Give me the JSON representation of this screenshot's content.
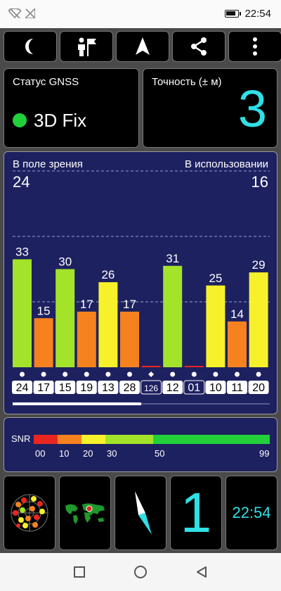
{
  "status_bar": {
    "time": "22:54"
  },
  "toolbar": {
    "icons": [
      "moon-icon",
      "person-flag-icon",
      "navigation-arrow-icon",
      "share-icon",
      "more-vertical-icon"
    ]
  },
  "gnss": {
    "title": "Статус GNSS",
    "value": "3D Fix",
    "status_color": "#22d13a"
  },
  "accuracy": {
    "title": "Точность (± м)",
    "value": "3",
    "color": "#2fe0e6"
  },
  "satellites": {
    "in_view_label": "В поле зрения",
    "in_view_count": "24",
    "in_use_label": "В использовании",
    "in_use_count": "16"
  },
  "snr": {
    "label": "SNR",
    "ticks": [
      "00",
      "10",
      "20",
      "30",
      "50",
      "99"
    ]
  },
  "bottom": {
    "clock": "22:54",
    "big_value": "1"
  },
  "chart_data": {
    "type": "bar",
    "categories": [
      "24",
      "17",
      "15",
      "19",
      "13",
      "28",
      "126",
      "12",
      "01",
      "10",
      "11",
      "20"
    ],
    "values": [
      33,
      15,
      30,
      17,
      26,
      17,
      0,
      31,
      0,
      25,
      14,
      29
    ],
    "value_labels": [
      "33",
      "15",
      "30",
      "17",
      "26",
      "17",
      "",
      "31",
      "",
      "25",
      "14",
      "29"
    ],
    "markers": [
      "dot",
      "dot",
      "dot",
      "dot",
      "dot",
      "dot",
      "diamond",
      "dot",
      "dot",
      "dot",
      "dot",
      "dot"
    ],
    "bar_colors": [
      "#a3e32a",
      "#f5821f",
      "#a3e32a",
      "#f5821f",
      "#f7f12b",
      "#f5821f",
      "#e8261f",
      "#a3e32a",
      "#e8261f",
      "#f7f12b",
      "#f5821f",
      "#f7f12b"
    ],
    "label_styles": [
      "box",
      "box",
      "box",
      "box",
      "box",
      "box",
      "outline",
      "box",
      "outline",
      "box",
      "box",
      "box"
    ],
    "ylim": [
      0,
      60
    ],
    "grid": "dashed",
    "scroll_position": 0.5
  }
}
